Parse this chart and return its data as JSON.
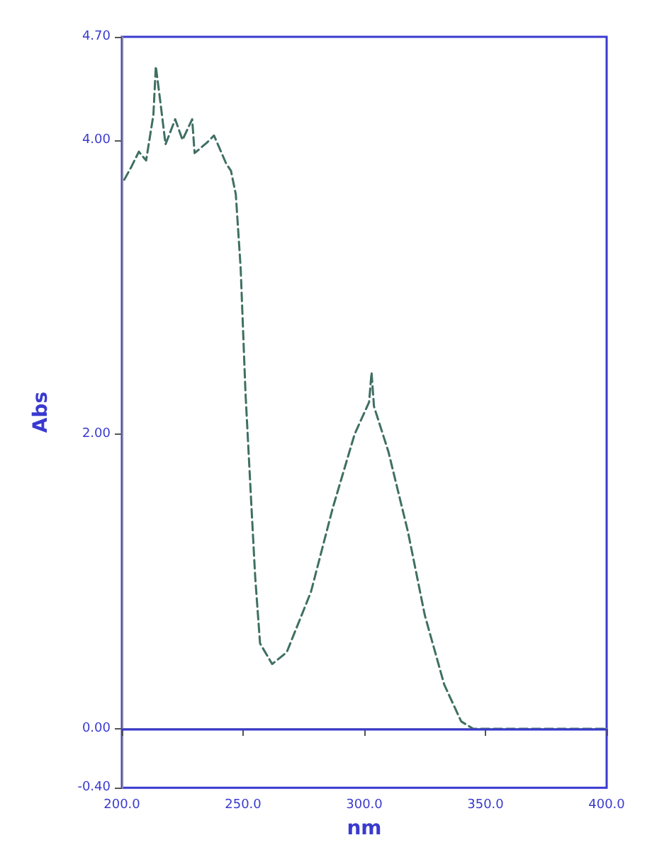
{
  "chart_data": {
    "type": "line",
    "xlabel": "nm",
    "ylabel": "Abs",
    "xlim": [
      200,
      400
    ],
    "xticks": [
      {
        "value": 200,
        "label": "200.0"
      },
      {
        "value": 250,
        "label": "250.0"
      },
      {
        "value": 300,
        "label": "300.0"
      },
      {
        "value": 350,
        "label": "350.0"
      },
      {
        "value": 400,
        "label": "400.0"
      }
    ],
    "ylim": [
      -0.4,
      4.7
    ],
    "yticks": [
      {
        "value": -0.4,
        "label": "-0.40"
      },
      {
        "value": 0,
        "label": "0.00"
      },
      {
        "value": 2,
        "label": "2.00"
      },
      {
        "value": 4,
        "label": "4.00"
      },
      {
        "value": 4.7,
        "label": "4.70"
      }
    ],
    "series": [
      {
        "color": "#3f6f63",
        "x": [
          201,
          204,
          207,
          210,
          213,
          214,
          216,
          218,
          222,
          225,
          229,
          230,
          235,
          238,
          243,
          245,
          247,
          249,
          251,
          253,
          255,
          257,
          262,
          268,
          278,
          287,
          296,
          302,
          303,
          304,
          310,
          318,
          325,
          333,
          340,
          345,
          360,
          380,
          400
        ],
        "values": [
          3.73,
          3.82,
          3.92,
          3.86,
          4.17,
          4.5,
          4.24,
          3.97,
          4.14,
          4.0,
          4.14,
          3.91,
          3.98,
          4.03,
          3.84,
          3.79,
          3.63,
          3.13,
          2.28,
          1.65,
          1.03,
          0.58,
          0.44,
          0.52,
          0.93,
          1.5,
          2.0,
          2.22,
          2.42,
          2.19,
          1.88,
          1.34,
          0.77,
          0.3,
          0.05,
          0.0,
          0.0,
          0.0,
          0.0
        ]
      }
    ],
    "ref_lines": [
      {
        "axis": "y",
        "value": 0,
        "color": "#3a3ad0"
      }
    ],
    "line_style": "dashed",
    "marker": "none"
  }
}
